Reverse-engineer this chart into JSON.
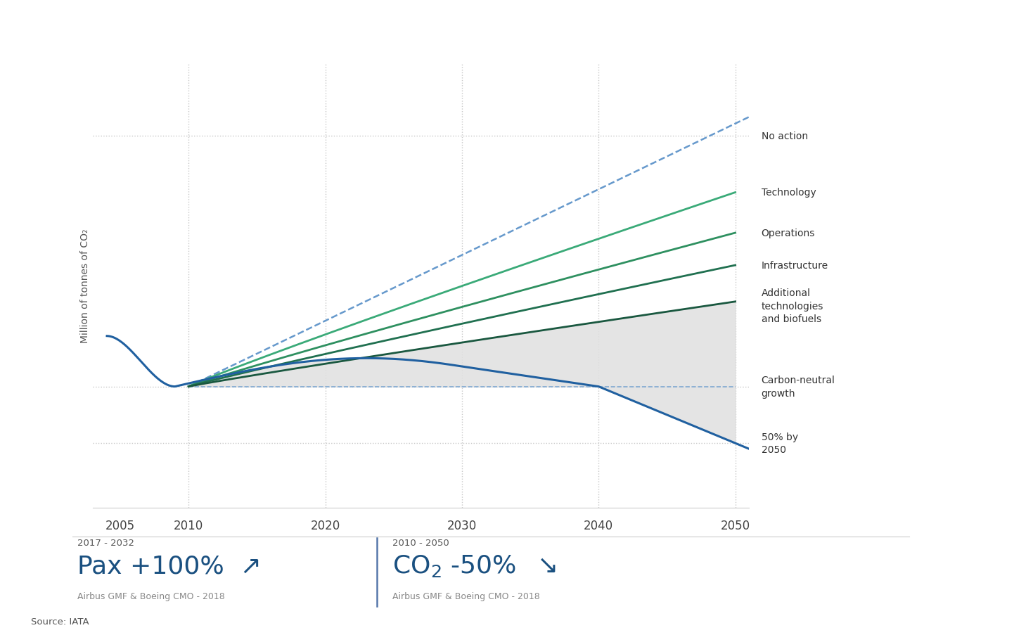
{
  "ylabel": "Million of tonnes of CO₂",
  "source": "Source: IATA",
  "x_ticks": [
    2005,
    2010,
    2020,
    2030,
    2040,
    2050
  ],
  "background_color": "#ffffff",
  "gridline_color": "#c8c8c8",
  "dashed_blue_color": "#6699cc",
  "solid_blue_color": "#2060a0",
  "green_tech_color": "#3aaa78",
  "green_ops_color": "#2e9060",
  "green_infra_color": "#207050",
  "green_add_color": "#1a5840",
  "fill_color": "#e0e0e0",
  "stat1_period": "2017 - 2032",
  "stat1_source": "Airbus GMF & Boeing CMO - 2018",
  "stat2_period": "2010 - 2050",
  "stat2_source": "Airbus GMF & Boeing CMO - 2018",
  "right_labels": [
    {
      "text": "No action",
      "y": 9.2
    },
    {
      "text": "Technology",
      "y": 7.8
    },
    {
      "text": "Operations",
      "y": 6.8
    },
    {
      "text": "Infrastructure",
      "y": 6.0
    },
    {
      "text": "Additional\ntechnologies\nand biofuels",
      "y": 5.0
    },
    {
      "text": "Carbon-neutral\ngrowth",
      "y": 3.0
    },
    {
      "text": "50% by\n2050",
      "y": 1.6
    }
  ],
  "hgrid_levels": [
    9.2,
    3.0,
    1.6
  ],
  "ylim": [
    0,
    11
  ],
  "xlim_start": 2003,
  "xlim_end": 2051
}
